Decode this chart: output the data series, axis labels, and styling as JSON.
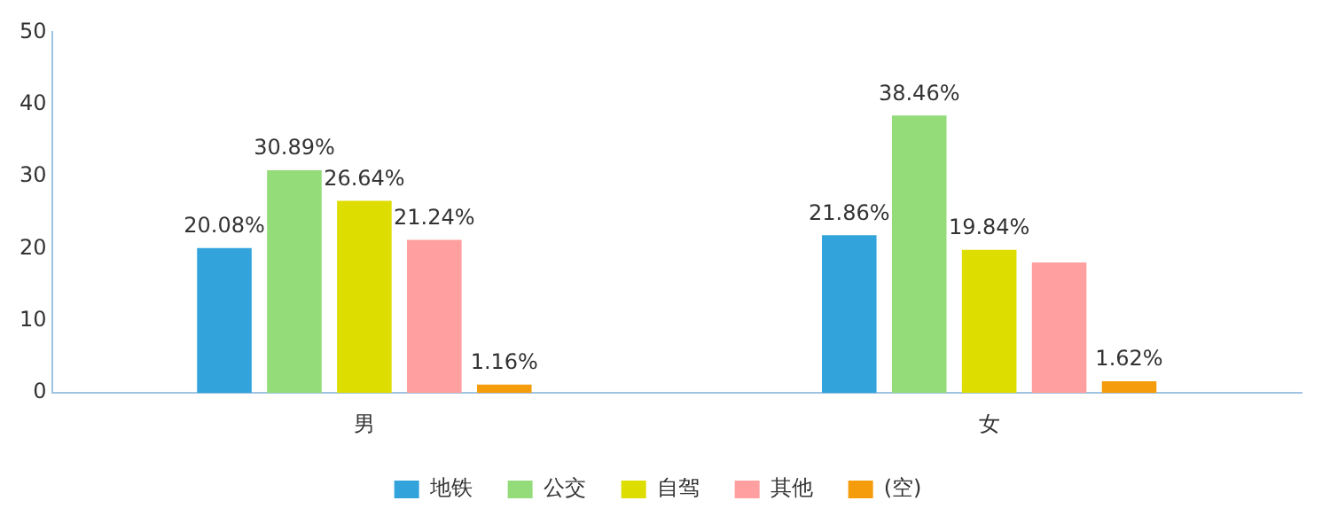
{
  "chart_data": {
    "type": "bar",
    "categories": [
      "男",
      "女"
    ],
    "series": [
      {
        "name": "地铁",
        "color": "#33a3dc",
        "values": [
          20.08,
          21.86
        ],
        "value_labels": [
          "20.08%",
          "21.86%"
        ]
      },
      {
        "name": "公交",
        "color": "#94dc7a",
        "values": [
          30.89,
          38.46
        ],
        "value_labels": [
          "30.89%",
          "38.46%"
        ]
      },
      {
        "name": "自驾",
        "color": "#dddd00",
        "values": [
          26.64,
          19.84
        ],
        "value_labels": [
          "26.64%",
          "19.84%"
        ]
      },
      {
        "name": "其他",
        "color": "#ff9f9f",
        "values": [
          21.24,
          18.1
        ],
        "value_labels": [
          "21.24%",
          null
        ]
      },
      {
        "name": "(空)",
        "color": "#f59c0c",
        "values": [
          1.16,
          1.62
        ],
        "value_labels": [
          "1.16%",
          "1.62%"
        ]
      }
    ],
    "ylim": [
      0,
      50
    ],
    "yticks": [
      0,
      10,
      20,
      30,
      40,
      50
    ],
    "grid": false,
    "legend": "bottom"
  }
}
